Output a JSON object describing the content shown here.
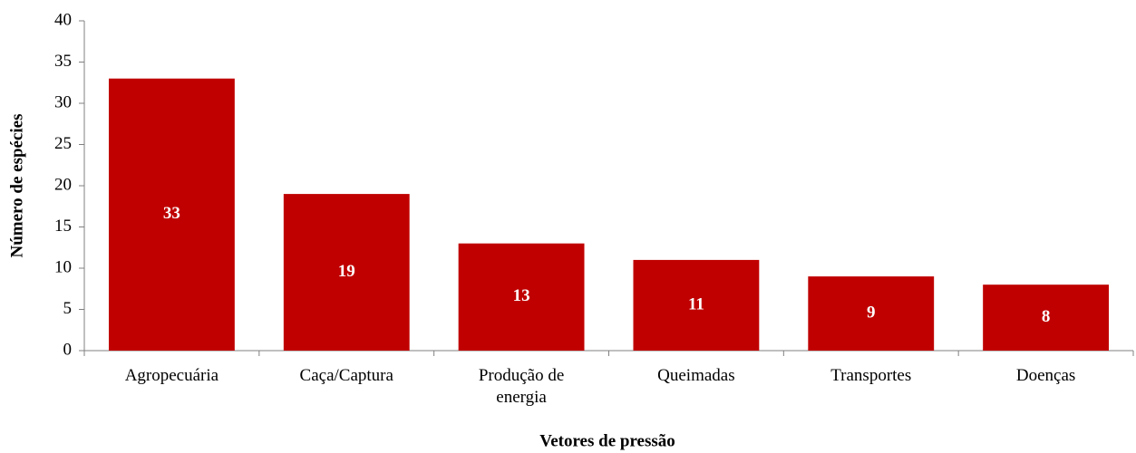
{
  "chart_data": {
    "type": "bar",
    "categories": [
      "Agropecuária",
      "Caça/Captura",
      "Produção de energia",
      "Queimadas",
      "Transportes",
      "Doenças"
    ],
    "values": [
      33,
      19,
      13,
      11,
      9,
      8
    ],
    "color": "#c00000",
    "xlabel": "Vetores de pressão",
    "ylabel": "Número de espécies",
    "ylim": [
      0,
      40
    ],
    "yticks": [
      0,
      5,
      10,
      15,
      20,
      25,
      30,
      35,
      40
    ],
    "data_labels": true,
    "grid": false
  }
}
